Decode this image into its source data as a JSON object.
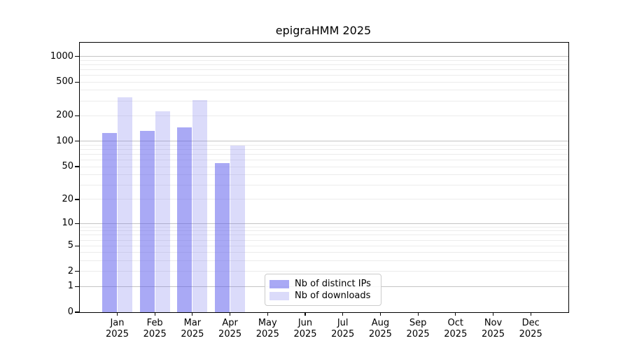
{
  "title": "epigraHMM 2025",
  "colors": {
    "distinct_ips_bar": "#a9a9f5",
    "downloads_bar": "#dbdbfa",
    "distinct_ips_fill": "rgba(83,83,235,0.5)",
    "downloads_fill": "rgba(111,111,235,0.25)",
    "grid_major": "#c4c4c4",
    "grid_minor": "#ececec",
    "axis": "#000000",
    "legend_border": "#cccccc"
  },
  "chart_data": {
    "type": "bar",
    "title": "epigraHMM 2025",
    "categories": [
      "Jan 2025",
      "Feb 2025",
      "Mar 2025",
      "Apr 2025",
      "May 2025",
      "Jun 2025",
      "Jul 2025",
      "Aug 2025",
      "Sep 2025",
      "Oct 2025",
      "Nov 2025",
      "Dec 2025"
    ],
    "series": [
      {
        "name": "Nb of distinct IPs",
        "color": "rgba(83,83,235,0.5)",
        "color_hex": "#a9a9f5",
        "values": [
          125,
          133,
          145,
          55,
          null,
          null,
          null,
          null,
          null,
          null,
          null,
          null
        ]
      },
      {
        "name": "Nb of downloads",
        "color": "rgba(111,111,235,0.25)",
        "color_hex": "#dbdbfa",
        "values": [
          330,
          225,
          305,
          89,
          null,
          null,
          null,
          null,
          null,
          null,
          null,
          null
        ]
      }
    ],
    "xlabel": "",
    "ylabel": "",
    "y_scale": "log1p",
    "y_ticks": [
      0,
      1,
      2,
      5,
      10,
      20,
      50,
      100,
      200,
      500,
      1000
    ],
    "ylim": [
      0,
      1450
    ],
    "grid": true,
    "legend_position": "lower center"
  }
}
